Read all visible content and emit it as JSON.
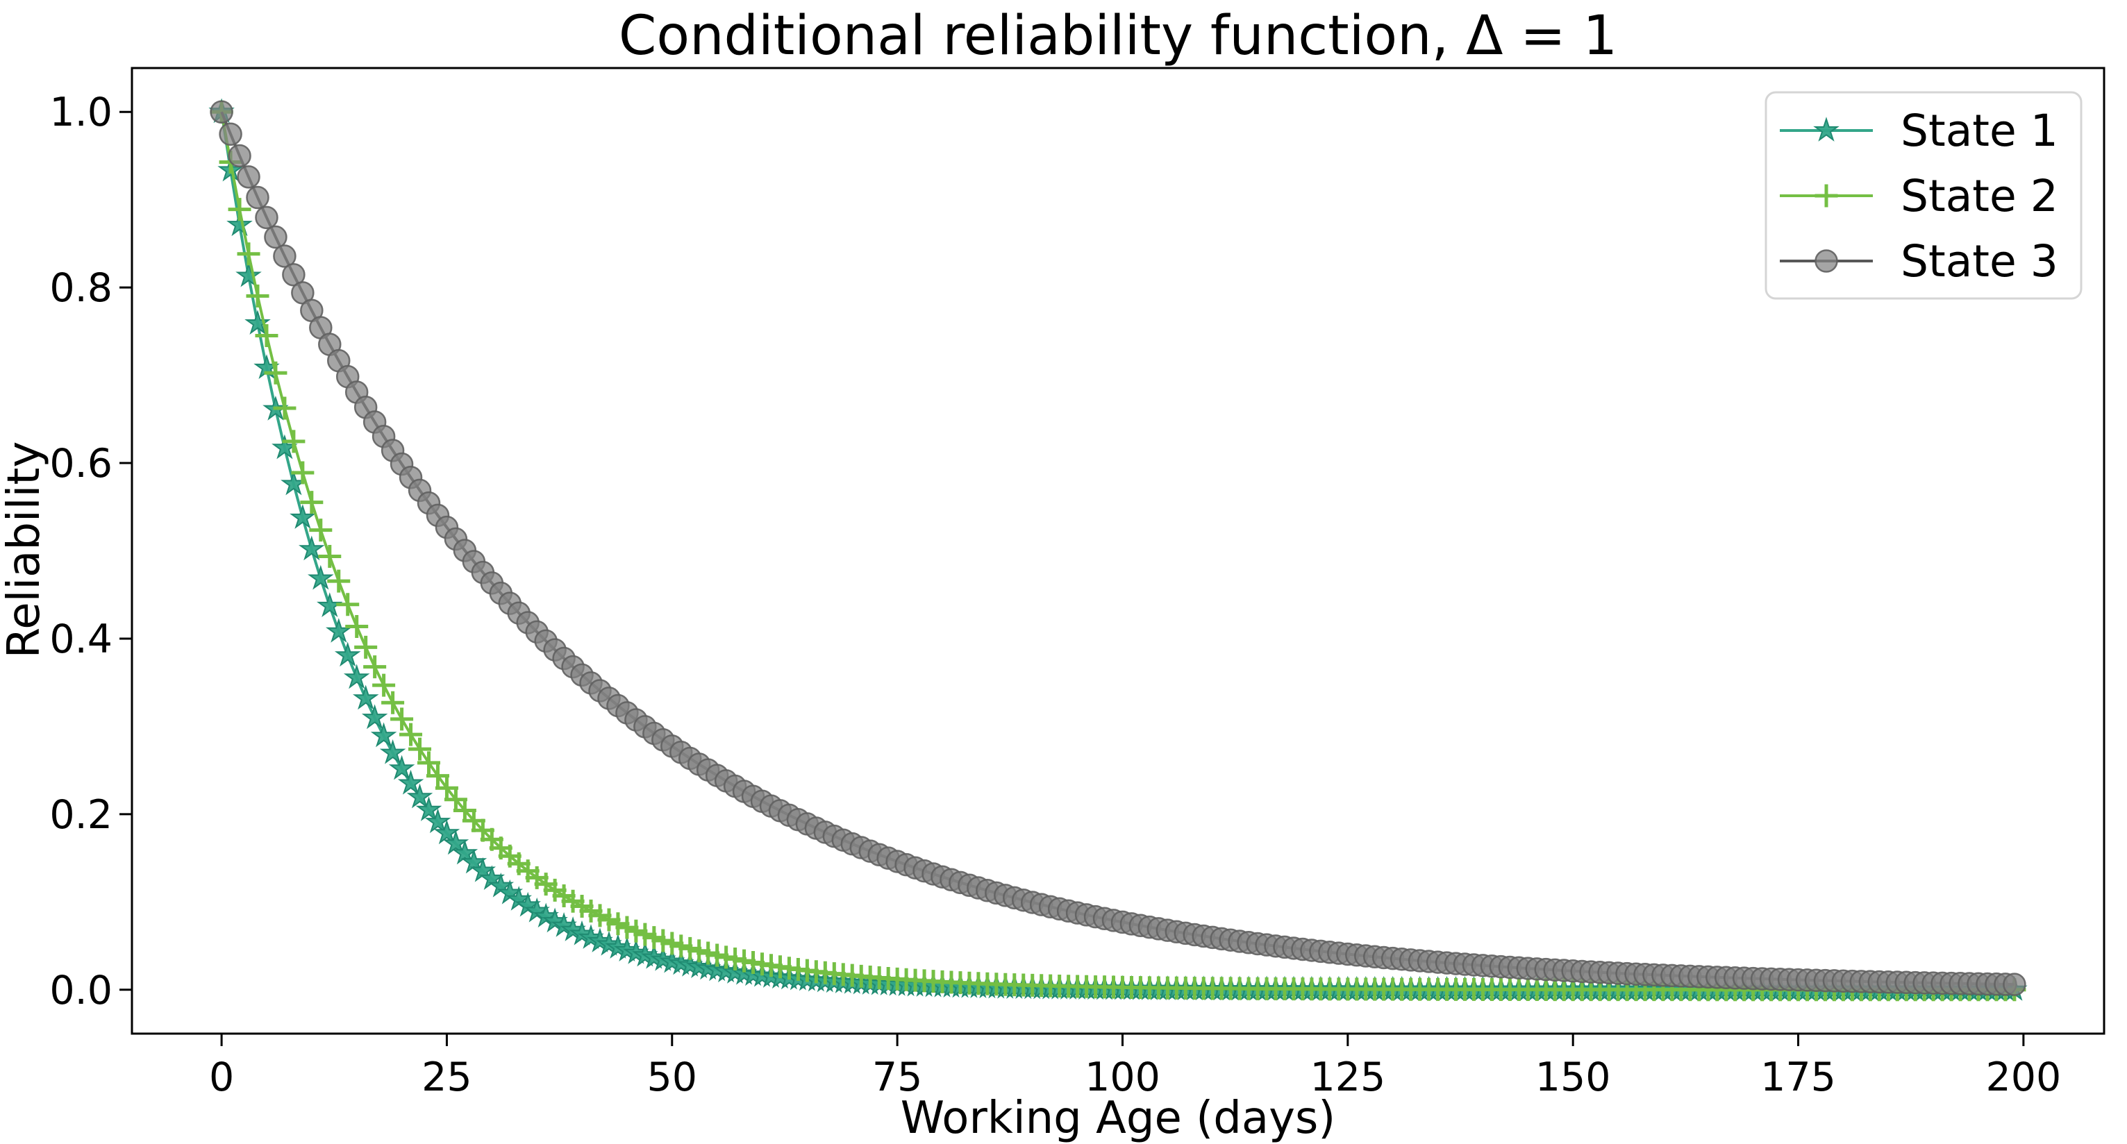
{
  "figure": {
    "background": "#ffffff",
    "text_color": "#000000"
  },
  "chart_data": {
    "type": "line",
    "title": "Conditional reliability function, Δ = 1",
    "xlabel": "Working Age (days)",
    "ylabel": "Reliability",
    "xlim": [
      -9.95,
      208.95
    ],
    "ylim": [
      -0.05,
      1.05
    ],
    "x_tick_values": [
      0,
      25,
      50,
      75,
      100,
      125,
      150,
      175,
      200
    ],
    "x_tick_labels": [
      "0",
      "25",
      "50",
      "75",
      "100",
      "125",
      "150",
      "175",
      "200"
    ],
    "y_tick_values": [
      0.0,
      0.2,
      0.4,
      0.6,
      0.8,
      1.0
    ],
    "y_tick_labels": [
      "0.0",
      "0.2",
      "0.4",
      "0.6",
      "0.8",
      "1.0"
    ],
    "grid": false,
    "legend": {
      "position": "upper right",
      "border_color": "#d5d5d5",
      "background": "#ffffff"
    },
    "x_unit": "days",
    "marker_every": 1,
    "x_start": 0,
    "x_end": 199,
    "x_step": 1,
    "sample_x": [
      0,
      5,
      10,
      15,
      20,
      25,
      30,
      35,
      40,
      45,
      50,
      55,
      60,
      65,
      70,
      75,
      80,
      85,
      90,
      95,
      100,
      105,
      110,
      115,
      120,
      125,
      130,
      135,
      140,
      145,
      150,
      155,
      160,
      165,
      170,
      175,
      180,
      185,
      190,
      195
    ],
    "series": [
      {
        "name": "State 1",
        "marker": "star",
        "color": "#33a689",
        "marker_edge_color": "#1f8a71",
        "model": {
          "type": "exponential_decay",
          "R0": 1.0,
          "scale_days": 14.5
        },
        "sample_y": [
          1.0,
          0.708,
          0.502,
          0.355,
          0.252,
          0.178,
          0.126,
          0.089,
          0.063,
          0.045,
          0.032,
          0.022,
          0.016,
          0.011,
          0.008,
          0.006,
          0.004,
          0.003,
          0.002,
          0.001,
          0.001,
          0.001,
          0.0,
          0.0,
          0.0,
          0.0,
          0.0,
          0.0,
          0.0,
          0.0,
          0.0,
          0.0,
          0.0,
          0.0,
          0.0,
          0.0,
          0.0,
          0.0,
          0.0,
          0.0
        ]
      },
      {
        "name": "State 2",
        "marker": "plus",
        "color": "#74bf44",
        "marker_edge_color": "#74bf44",
        "model": {
          "type": "exponential_decay",
          "R0": 1.0,
          "scale_days": 17.0
        },
        "sample_y": [
          1.0,
          0.745,
          0.555,
          0.414,
          0.308,
          0.23,
          0.171,
          0.128,
          0.095,
          0.071,
          0.053,
          0.039,
          0.029,
          0.022,
          0.016,
          0.012,
          0.009,
          0.007,
          0.005,
          0.004,
          0.003,
          0.002,
          0.002,
          0.001,
          0.001,
          0.001,
          0.0,
          0.0,
          0.0,
          0.0,
          0.0,
          0.0,
          0.0,
          0.0,
          0.0,
          0.0,
          0.0,
          0.0,
          0.0,
          0.0
        ]
      },
      {
        "name": "State 3",
        "marker": "circle",
        "color": "#828282",
        "line_color": "#585858",
        "marker_edge_color": "#606060",
        "fill_alpha": 0.72,
        "model": {
          "type": "exponential_decay",
          "R0": 1.0,
          "scale_days": 39.0
        },
        "sample_y": [
          1.0,
          0.88,
          0.774,
          0.681,
          0.599,
          0.527,
          0.463,
          0.408,
          0.359,
          0.316,
          0.277,
          0.244,
          0.215,
          0.189,
          0.166,
          0.146,
          0.129,
          0.113,
          0.099,
          0.088,
          0.077,
          0.068,
          0.06,
          0.052,
          0.046,
          0.041,
          0.036,
          0.031,
          0.028,
          0.024,
          0.021,
          0.019,
          0.017,
          0.015,
          0.013,
          0.011,
          0.01,
          0.009,
          0.008,
          0.007
        ]
      }
    ]
  }
}
